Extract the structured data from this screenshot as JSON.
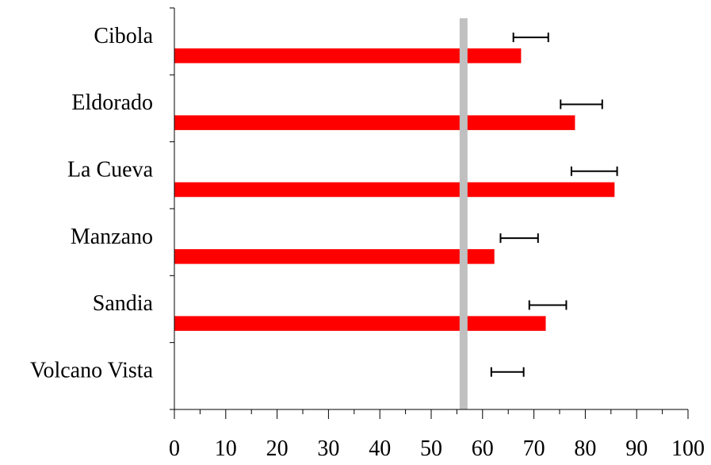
{
  "chart_data": {
    "type": "bar",
    "orientation": "horizontal",
    "title": "",
    "xlabel": "",
    "ylabel": "",
    "xlim": [
      0,
      100
    ],
    "x_ticks": [
      "0",
      "10",
      "20",
      "30",
      "40",
      "50",
      "60",
      "70",
      "80",
      "90",
      "100"
    ],
    "grid": false,
    "legend": "none",
    "categories": [
      "Cibola",
      "Eldorado",
      "La Cueva",
      "Manzano",
      "Sandia",
      "Volcano Vista"
    ],
    "series": [
      {
        "values": [
          67.5,
          78.0,
          85.7,
          62.3,
          72.3,
          null
        ],
        "color": "#ff0000"
      }
    ],
    "error_intervals": [
      [
        66.0,
        72.8
      ],
      [
        75.2,
        83.3
      ],
      [
        77.3,
        86.2
      ],
      [
        63.5,
        70.8
      ],
      [
        69.1,
        76.3
      ],
      [
        61.7,
        68.0
      ]
    ],
    "reference_line": {
      "value": 56.3,
      "color": "#c0c0c0"
    },
    "colors": {
      "bar": "#ff0000",
      "reference": "#c0c0c0",
      "axis": "#000000"
    }
  }
}
